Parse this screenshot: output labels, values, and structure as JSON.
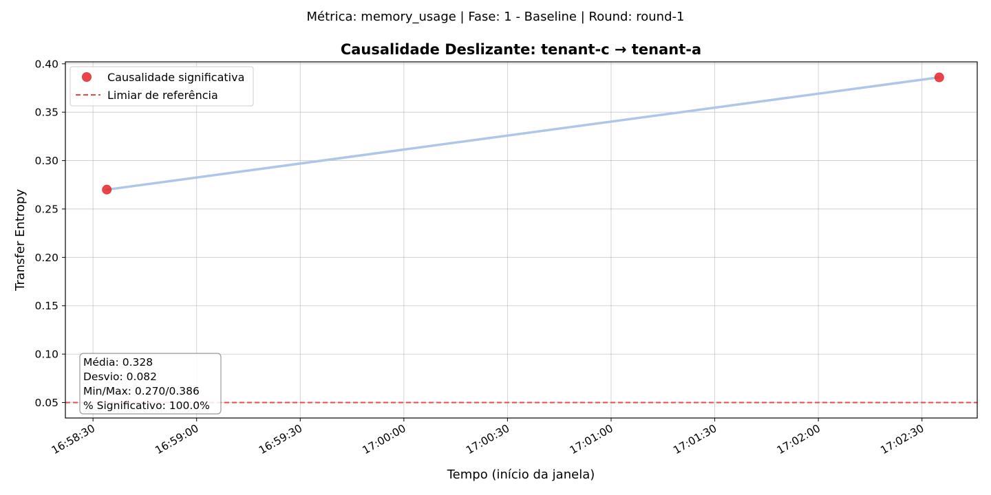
{
  "chart_data": {
    "type": "line",
    "suptitle": "Métrica: memory_usage | Fase: 1 - Baseline | Round: round-1",
    "title": "Causalidade Deslizante: tenant-c → tenant-a",
    "xlabel": "Tempo (início da janela)",
    "ylabel": "Transfer Entropy",
    "x_ticks": [
      "16:58:30",
      "16:59:00",
      "16:59:30",
      "17:00:00",
      "17:00:30",
      "17:01:00",
      "17:01:30",
      "17:02:00",
      "17:02:30"
    ],
    "x_range": [
      "16:58:22",
      "17:02:46"
    ],
    "y_ticks": [
      "0.05",
      "0.10",
      "0.15",
      "0.20",
      "0.25",
      "0.30",
      "0.35",
      "0.40"
    ],
    "ylim": [
      0.034,
      0.402
    ],
    "grid": true,
    "series": [
      {
        "x": [
          "16:58:34",
          "17:02:35"
        ],
        "y": [
          0.27,
          0.386
        ],
        "color": "#aec7e8"
      }
    ],
    "significant_points": {
      "x": [
        "16:58:34",
        "17:02:35"
      ],
      "y": [
        0.27,
        0.386
      ],
      "color": "#e8242a"
    },
    "reference_line": {
      "y": 0.05,
      "color": "#e84848"
    },
    "legend": {
      "placement": "top-left",
      "items": [
        {
          "label": "Causalidade significativa",
          "marker": "circle",
          "color": "#e8242a"
        },
        {
          "label": "Limiar de referência",
          "marker": "dashed-line",
          "color": "#e84848"
        }
      ]
    },
    "stats_box": {
      "lines": [
        "Média: 0.328",
        "Desvio: 0.082",
        "Min/Max: 0.270/0.386",
        "% Significativo: 100.0%"
      ]
    }
  }
}
